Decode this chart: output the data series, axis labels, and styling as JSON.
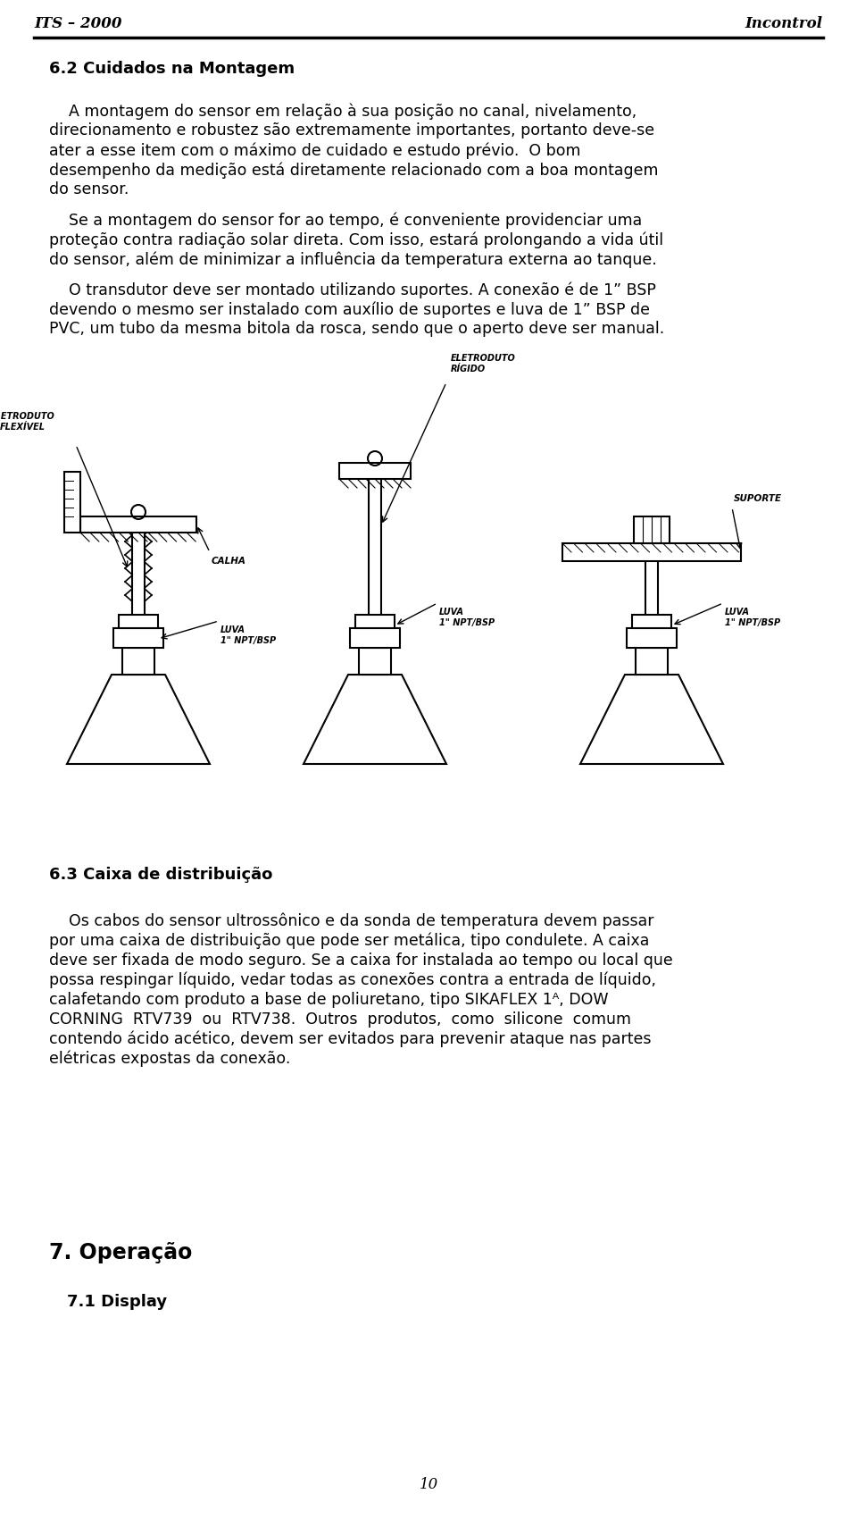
{
  "header_left": "ITS – 2000",
  "header_right": "Incontrol",
  "page_number": "10",
  "section_title": "6.2 Cuidados na Montagem",
  "para1_line1": "    A montagem do sensor em relação à sua posição no canal, nivelamento,",
  "para1_line2": "direcionamento e robustez são extremamente importantes, portanto deve-se",
  "para1_line3": "ater a esse item com o máximo de cuidado e estudo prévio.  O bom",
  "para1_line4": "desempenho da medição está diretamente relacionado com a boa montagem",
  "para1_line5": "do sensor.",
  "para2_line1": "    Se a montagem do sensor for ao tempo, é conveniente providenciar uma",
  "para2_line2": "proteção contra radiação solar direta. Com isso, estará prolongando a vida útil",
  "para2_line3": "do sensor, além de minimizar a influência da temperatura externa ao tanque.",
  "para3_line1": "    O transdutor deve ser montado utilizando suportes. A conexão é de 1” BSP",
  "para3_line2": "devendo o mesmo ser instalado com auxílio de suportes e luva de 1” BSP de",
  "para3_line3": "PVC, um tubo da mesma bitola da rosca, sendo que o aperto deve ser manual.",
  "section2_title": "6.3 Caixa de distribuição",
  "para4_line1": "    Os cabos do sensor ultrossônico e da sonda de temperatura devem passar",
  "para4_line2": "por uma caixa de distribuição que pode ser metálica, tipo condulete. A caixa",
  "para4_line3": "deve ser fixada de modo seguro. Se a caixa for instalada ao tempo ou local que",
  "para4_line4": "possa respingar líquido, vedar todas as conexões contra a entrada de líquido,",
  "para4_line5": "calafetando com produto a base de poliuretano, tipo SIKAFLEX 1ᴬ, DOW",
  "para4_line6": "CORNING  RTV739  ou  RTV738.  Outros  produtos,  como  silicone  comum",
  "para4_line7": "contendo ácido acético, devem ser evitados para prevenir ataque nas partes",
  "para4_line8": "elétricas expostas da conexão.",
  "section3_title": "7. Operação",
  "section3_sub": "7.1 Display",
  "bg_color": "#ffffff",
  "text_color": "#000000",
  "header_line_color": "#000000",
  "font_size_body": 12.5,
  "font_size_header": 12,
  "font_size_section": 13,
  "font_size_page": 12
}
